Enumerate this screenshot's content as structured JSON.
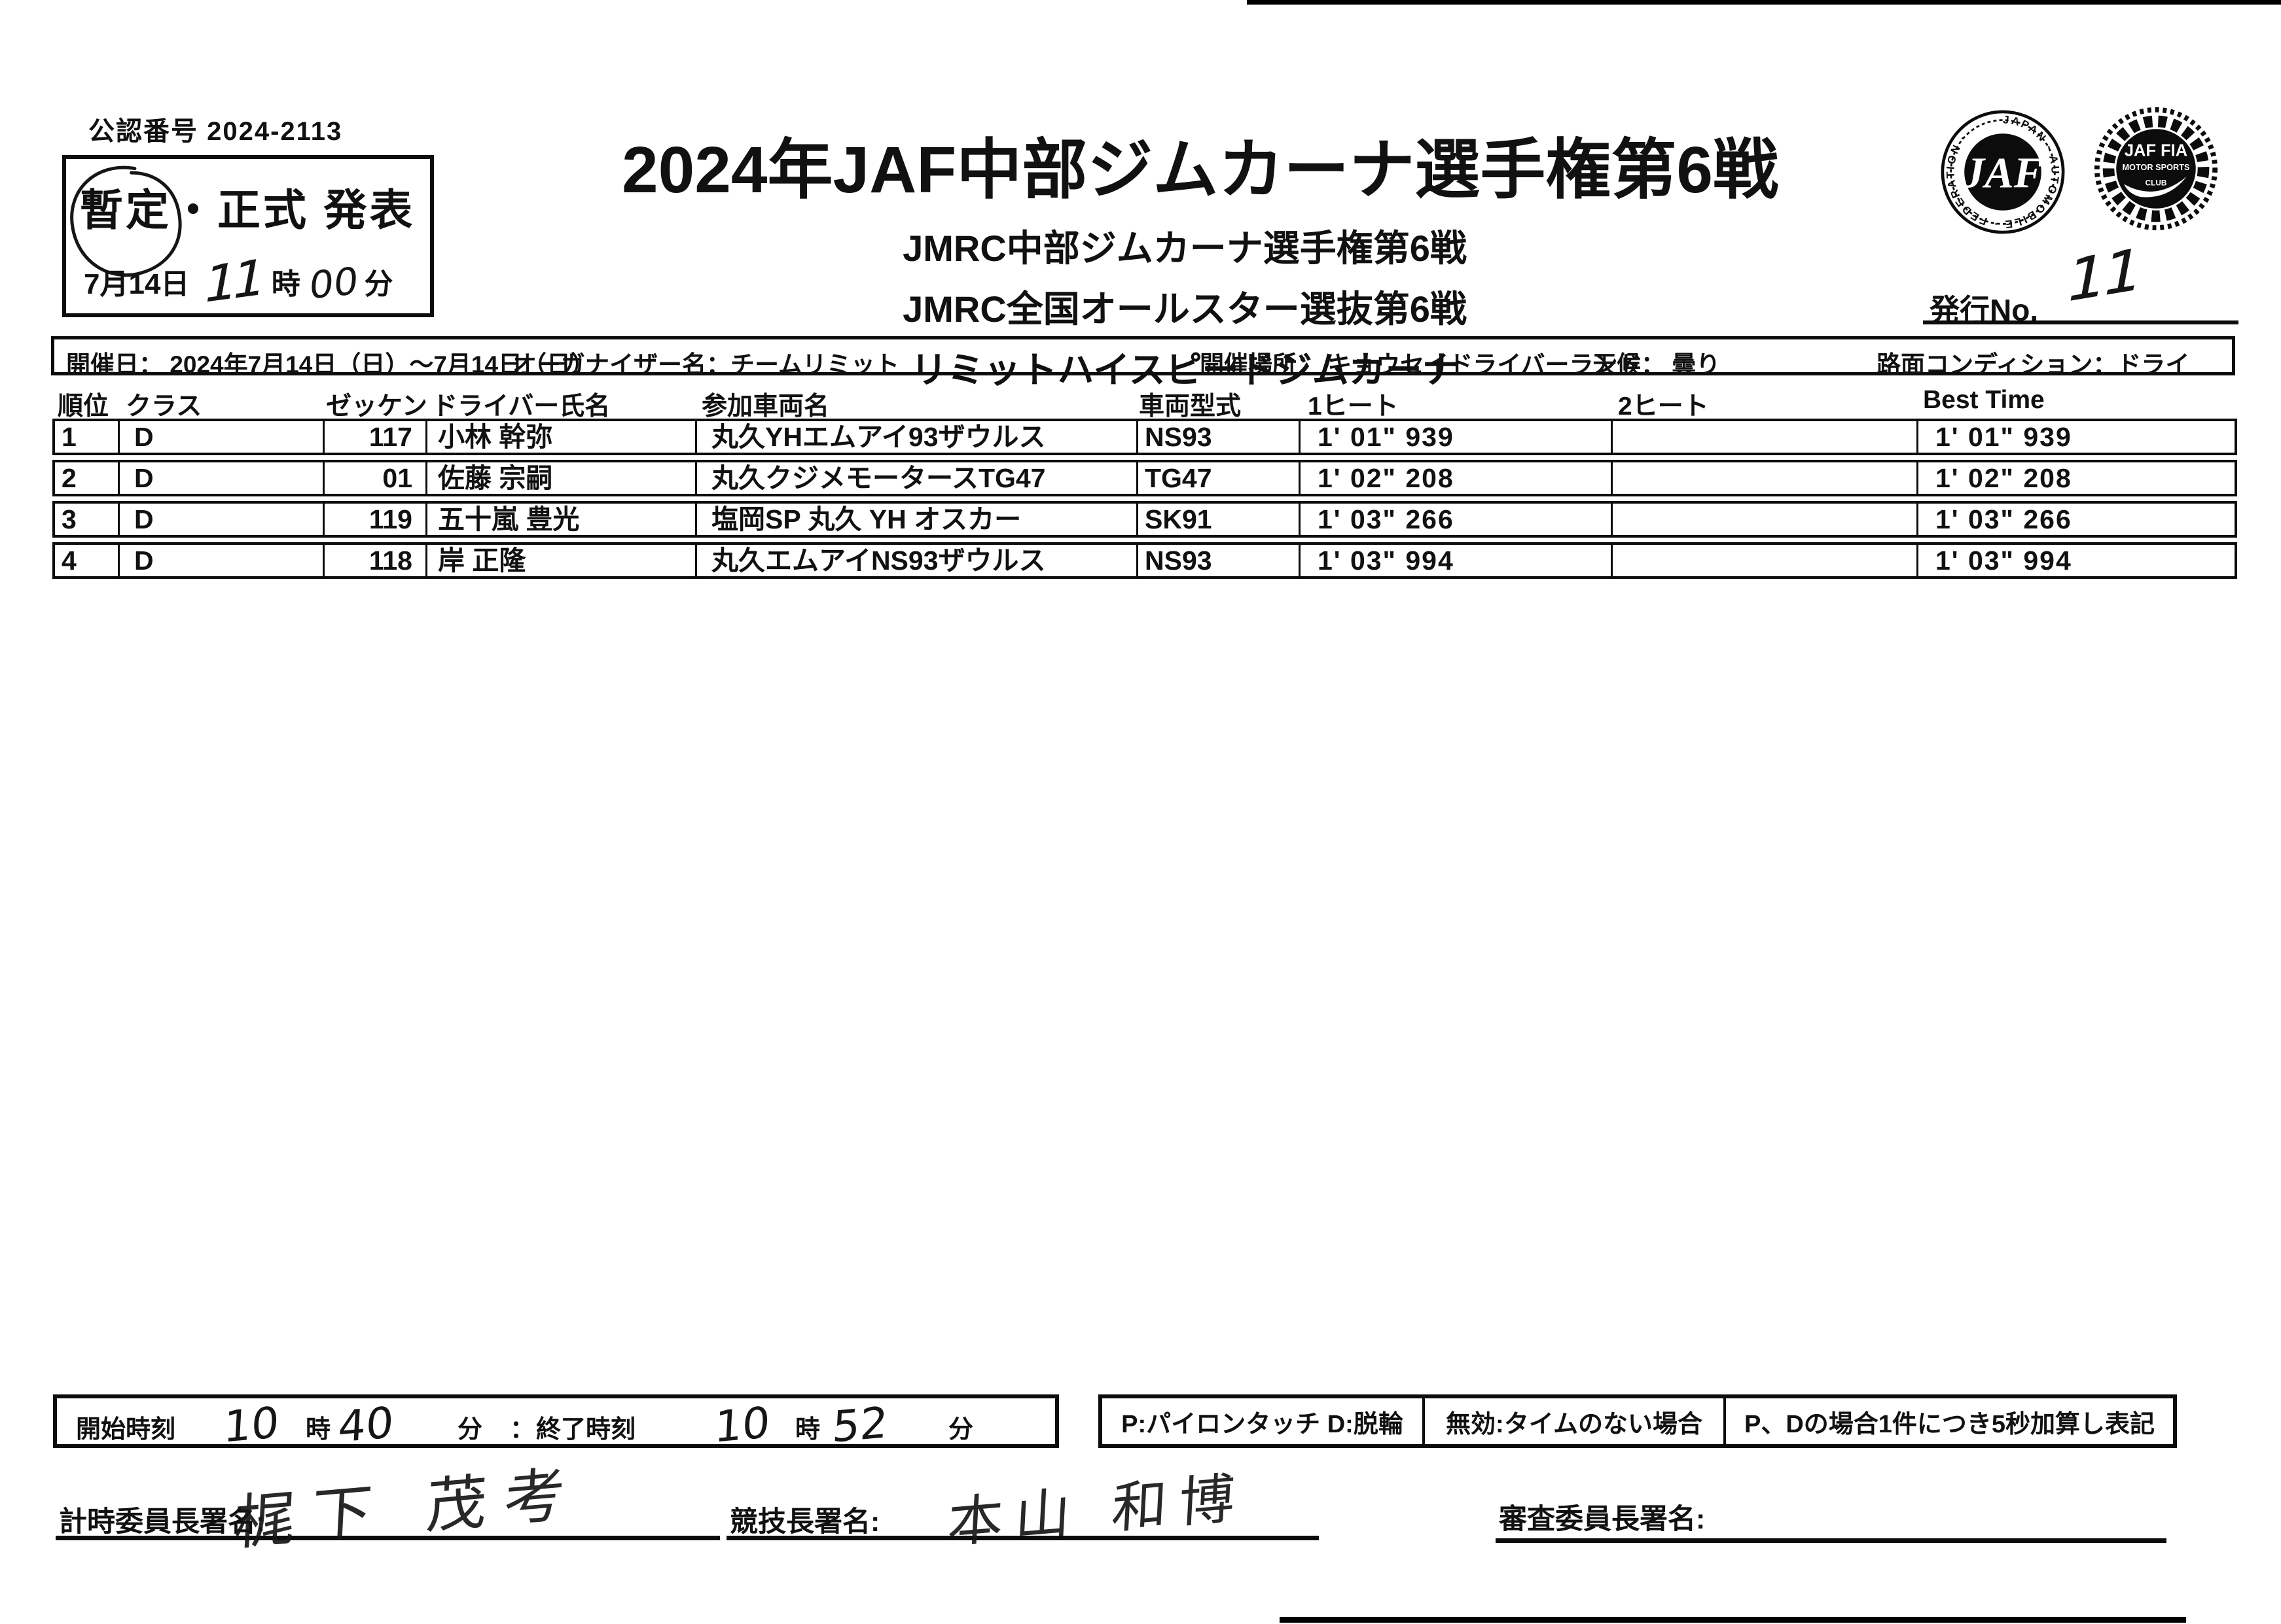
{
  "ink_color": "#111111",
  "paper_color": "#ffffff",
  "approval_no": "公認番号 2024-2113",
  "status_box": {
    "headline": "暫定・正式  発表",
    "circled_word": "暫定",
    "date": "7月14日",
    "hour_hand": "11",
    "hour_unit": "時",
    "minute_hand": "00",
    "minute_unit": "分"
  },
  "header": {
    "title": "2024年JAF中部ジムカーナ選手権第6戦",
    "subtitles": [
      "JMRC中部ジムカーナ選手権第6戦",
      "JMRC全国オールスター選抜第6戦",
      "リミットハイスピードジムカーナ"
    ],
    "issue_label": "発行No.",
    "issue_value": "11",
    "badge1_text": {
      "ring": "JAPAN AUTOMOBILE FEDERATION",
      "center": "JAF"
    },
    "badge2_text": {
      "line1": "JAF FIA",
      "line2": "MOTOR SPORTS",
      "line3": "CLUB"
    }
  },
  "event_info": {
    "items": [
      "開催日： 2024年7月14日（日）～7月14日（日）",
      "オーガナイザー名：チームリミット",
      "開催場所： キョウセイドライバーランド",
      "天候： 曇り",
      "路面コンディション：ドライ"
    ]
  },
  "results_table": {
    "headers": [
      "順位",
      "クラス",
      "ゼッケン",
      "ドライバー氏名",
      "参加車両名",
      "車両型式",
      "1ヒート",
      "2ヒート",
      "Best Time"
    ],
    "rows": [
      {
        "rank": "1",
        "class": "D",
        "no": "117",
        "driver": "小林  幹弥",
        "car": "丸久YHエムアイ93ザウルス",
        "model": "NS93",
        "heat1": "1' 01\" 939",
        "heat2": "",
        "best": "1' 01\" 939"
      },
      {
        "rank": "2",
        "class": "D",
        "no": "01",
        "driver": "佐藤  宗嗣",
        "car": "丸久クジメモータースTG47",
        "model": "TG47",
        "heat1": "1' 02\" 208",
        "heat2": "",
        "best": "1' 02\" 208"
      },
      {
        "rank": "3",
        "class": "D",
        "no": "119",
        "driver": "五十嵐  豊光",
        "car": "塩岡SP 丸久 YH オスカー",
        "model": "SK91",
        "heat1": "1' 03\" 266",
        "heat2": "",
        "best": "1' 03\" 266"
      },
      {
        "rank": "4",
        "class": "D",
        "no": "118",
        "driver": "岸  正隆",
        "car": "丸久エムアイNS93ザウルス",
        "model": "NS93",
        "heat1": "1' 03\" 994",
        "heat2": "",
        "best": "1' 03\" 994"
      }
    ]
  },
  "footer": {
    "time_box": {
      "start_label": "開始時刻",
      "start_hour": "10",
      "hour_unit": "時",
      "start_min": "40",
      "min_unit": "分",
      "separator": "：",
      "end_label": "終了時刻",
      "end_hour": "10",
      "end_min": "52"
    },
    "notes": [
      "P:パイロンタッチ D:脱輪",
      "無効:タイムのない場合",
      "P、Dの場合1件につき5秒加算し表記"
    ],
    "signatures": [
      {
        "label": "計時委員長署名:",
        "value": "梶下 茂考"
      },
      {
        "label": "競技長署名:",
        "value": "本山 和博"
      },
      {
        "label": "審査委員長署名:",
        "value": ""
      }
    ]
  }
}
